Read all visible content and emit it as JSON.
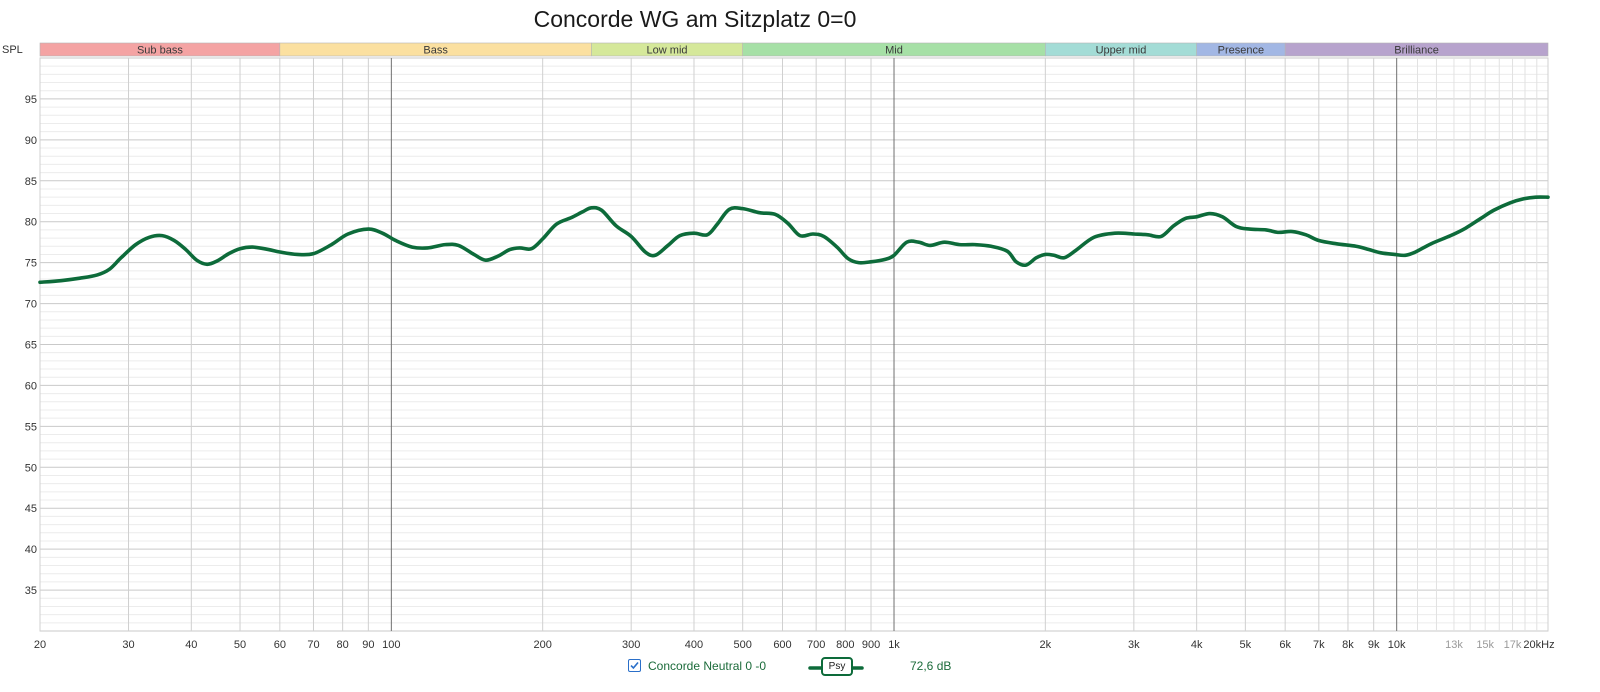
{
  "title": "Concorde WG am Sitzplatz 0=0",
  "legend": {
    "series_name": "Concorde Neutral 0 -0",
    "checked": true,
    "smoothing_label": "Psy",
    "level_text": "72,6 dB"
  },
  "chart_data": {
    "type": "line",
    "title": "Concorde WG am Sitzplatz 0=0",
    "xlabel": "",
    "ylabel": "SPL",
    "x_scale": "log",
    "xlim": [
      20,
      20000
    ],
    "ylim": [
      30,
      100
    ],
    "x_unit_label": "kHz",
    "y_ticks": [
      35,
      40,
      45,
      50,
      55,
      60,
      65,
      70,
      75,
      80,
      85,
      90,
      95
    ],
    "x_ticks": [
      {
        "value": 20,
        "label": "20"
      },
      {
        "value": 30,
        "label": "30"
      },
      {
        "value": 40,
        "label": "40"
      },
      {
        "value": 50,
        "label": "50"
      },
      {
        "value": 60,
        "label": "60"
      },
      {
        "value": 70,
        "label": "70"
      },
      {
        "value": 80,
        "label": "80"
      },
      {
        "value": 90,
        "label": "90"
      },
      {
        "value": 100,
        "label": "100"
      },
      {
        "value": 200,
        "label": "200"
      },
      {
        "value": 300,
        "label": "300"
      },
      {
        "value": 400,
        "label": "400"
      },
      {
        "value": 500,
        "label": "500"
      },
      {
        "value": 600,
        "label": "600"
      },
      {
        "value": 700,
        "label": "700"
      },
      {
        "value": 800,
        "label": "800"
      },
      {
        "value": 900,
        "label": "900"
      },
      {
        "value": 1000,
        "label": "1k"
      },
      {
        "value": 2000,
        "label": "2k"
      },
      {
        "value": 3000,
        "label": "3k"
      },
      {
        "value": 4000,
        "label": "4k"
      },
      {
        "value": 5000,
        "label": "5k"
      },
      {
        "value": 6000,
        "label": "6k"
      },
      {
        "value": 7000,
        "label": "7k"
      },
      {
        "value": 8000,
        "label": "8k"
      },
      {
        "value": 9000,
        "label": "9k"
      },
      {
        "value": 10000,
        "label": "10k"
      },
      {
        "value": 13000,
        "label": "13k",
        "minor": true
      },
      {
        "value": 15000,
        "label": "15k",
        "minor": true
      },
      {
        "value": 17000,
        "label": "17k",
        "minor": true
      },
      {
        "value": 20000,
        "label": "20kHz"
      }
    ],
    "bands": [
      {
        "name": "Sub bass",
        "from": 20,
        "to": 60,
        "color": "#f4a3a3"
      },
      {
        "name": "Bass",
        "from": 60,
        "to": 250,
        "color": "#fbe0a0"
      },
      {
        "name": "Low mid",
        "from": 250,
        "to": 500,
        "color": "#d5e89a"
      },
      {
        "name": "Mid",
        "from": 500,
        "to": 2000,
        "color": "#a6e0a6"
      },
      {
        "name": "Upper mid",
        "from": 2000,
        "to": 4000,
        "color": "#a3dcd6"
      },
      {
        "name": "Presence",
        "from": 4000,
        "to": 6000,
        "color": "#a2b7e4"
      },
      {
        "name": "Brilliance",
        "from": 6000,
        "to": 20000,
        "color": "#b7a3cd"
      }
    ],
    "grid": true,
    "series": [
      {
        "name": "Concorde Neutral 0 -0",
        "color": "#0d6b3a",
        "points": [
          [
            20,
            72.6
          ],
          [
            22,
            72.8
          ],
          [
            24,
            73.1
          ],
          [
            26,
            73.5
          ],
          [
            27.5,
            74.2
          ],
          [
            29,
            75.6
          ],
          [
            31,
            77.2
          ],
          [
            33,
            78.1
          ],
          [
            35,
            78.3
          ],
          [
            37,
            77.7
          ],
          [
            39,
            76.6
          ],
          [
            41,
            75.3
          ],
          [
            43,
            74.8
          ],
          [
            45,
            75.2
          ],
          [
            47.5,
            76.1
          ],
          [
            50,
            76.7
          ],
          [
            53,
            76.9
          ],
          [
            57,
            76.6
          ],
          [
            60,
            76.3
          ],
          [
            65,
            76.0
          ],
          [
            70,
            76.1
          ],
          [
            76,
            77.2
          ],
          [
            82,
            78.5
          ],
          [
            90,
            79.1
          ],
          [
            96,
            78.6
          ],
          [
            102,
            77.7
          ],
          [
            110,
            76.9
          ],
          [
            118,
            76.8
          ],
          [
            128,
            77.2
          ],
          [
            136,
            77.1
          ],
          [
            146,
            76.0
          ],
          [
            154,
            75.3
          ],
          [
            163,
            75.8
          ],
          [
            172,
            76.6
          ],
          [
            180,
            76.8
          ],
          [
            190,
            76.7
          ],
          [
            200,
            77.9
          ],
          [
            213,
            79.7
          ],
          [
            228,
            80.5
          ],
          [
            240,
            81.2
          ],
          [
            250,
            81.7
          ],
          [
            262,
            81.4
          ],
          [
            280,
            79.5
          ],
          [
            300,
            78.2
          ],
          [
            320,
            76.3
          ],
          [
            335,
            75.9
          ],
          [
            355,
            77.1
          ],
          [
            375,
            78.3
          ],
          [
            400,
            78.6
          ],
          [
            425,
            78.4
          ],
          [
            445,
            79.7
          ],
          [
            470,
            81.5
          ],
          [
            500,
            81.6
          ],
          [
            540,
            81.1
          ],
          [
            580,
            80.9
          ],
          [
            615,
            79.8
          ],
          [
            650,
            78.3
          ],
          [
            690,
            78.5
          ],
          [
            725,
            78.2
          ],
          [
            770,
            76.9
          ],
          [
            810,
            75.5
          ],
          [
            850,
            75.0
          ],
          [
            900,
            75.1
          ],
          [
            960,
            75.4
          ],
          [
            1000,
            75.9
          ],
          [
            1060,
            77.5
          ],
          [
            1120,
            77.5
          ],
          [
            1180,
            77.1
          ],
          [
            1260,
            77.5
          ],
          [
            1350,
            77.2
          ],
          [
            1450,
            77.2
          ],
          [
            1560,
            77.0
          ],
          [
            1680,
            76.4
          ],
          [
            1750,
            75.1
          ],
          [
            1830,
            74.7
          ],
          [
            1920,
            75.6
          ],
          [
            2000,
            76.0
          ],
          [
            2080,
            75.9
          ],
          [
            2180,
            75.6
          ],
          [
            2300,
            76.5
          ],
          [
            2500,
            78.1
          ],
          [
            2750,
            78.6
          ],
          [
            3000,
            78.5
          ],
          [
            3200,
            78.4
          ],
          [
            3400,
            78.2
          ],
          [
            3600,
            79.5
          ],
          [
            3800,
            80.4
          ],
          [
            4000,
            80.6
          ],
          [
            4250,
            81.0
          ],
          [
            4500,
            80.6
          ],
          [
            4800,
            79.4
          ],
          [
            5100,
            79.1
          ],
          [
            5500,
            79.0
          ],
          [
            5800,
            78.7
          ],
          [
            6200,
            78.8
          ],
          [
            6600,
            78.4
          ],
          [
            7000,
            77.7
          ],
          [
            7600,
            77.3
          ],
          [
            8300,
            77.0
          ],
          [
            8800,
            76.6
          ],
          [
            9300,
            76.2
          ],
          [
            9900,
            76.0
          ],
          [
            10400,
            75.9
          ],
          [
            10900,
            76.3
          ],
          [
            11700,
            77.3
          ],
          [
            12800,
            78.3
          ],
          [
            13700,
            79.2
          ],
          [
            14700,
            80.4
          ],
          [
            15600,
            81.4
          ],
          [
            16800,
            82.3
          ],
          [
            17900,
            82.8
          ],
          [
            18900,
            83.0
          ],
          [
            20000,
            83.0
          ]
        ]
      }
    ]
  }
}
